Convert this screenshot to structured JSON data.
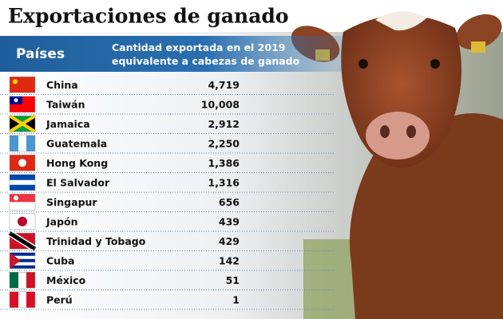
{
  "header": {
    "title": "Exportaciones de ganado",
    "column_country": "Países",
    "column_value": "Cantidad exportada en el 2019 equivalente a  cabezas de ganado"
  },
  "table": {
    "rows": [
      [
        "China",
        "4,719"
      ],
      [
        "Taiwán",
        "10,008"
      ],
      [
        "Jamaica",
        "2,912"
      ],
      [
        "Guatemala",
        "2,250"
      ],
      [
        "Hong Kong",
        "1,386"
      ],
      [
        "El Salvador",
        "1,316"
      ],
      [
        "Singapur",
        "656"
      ],
      [
        "Japón",
        "439"
      ],
      [
        "Trinidad y Tobago",
        "429"
      ],
      [
        "Cuba",
        "142"
      ],
      [
        "México",
        "51"
      ],
      [
        "Perú",
        "1"
      ]
    ]
  }
}
